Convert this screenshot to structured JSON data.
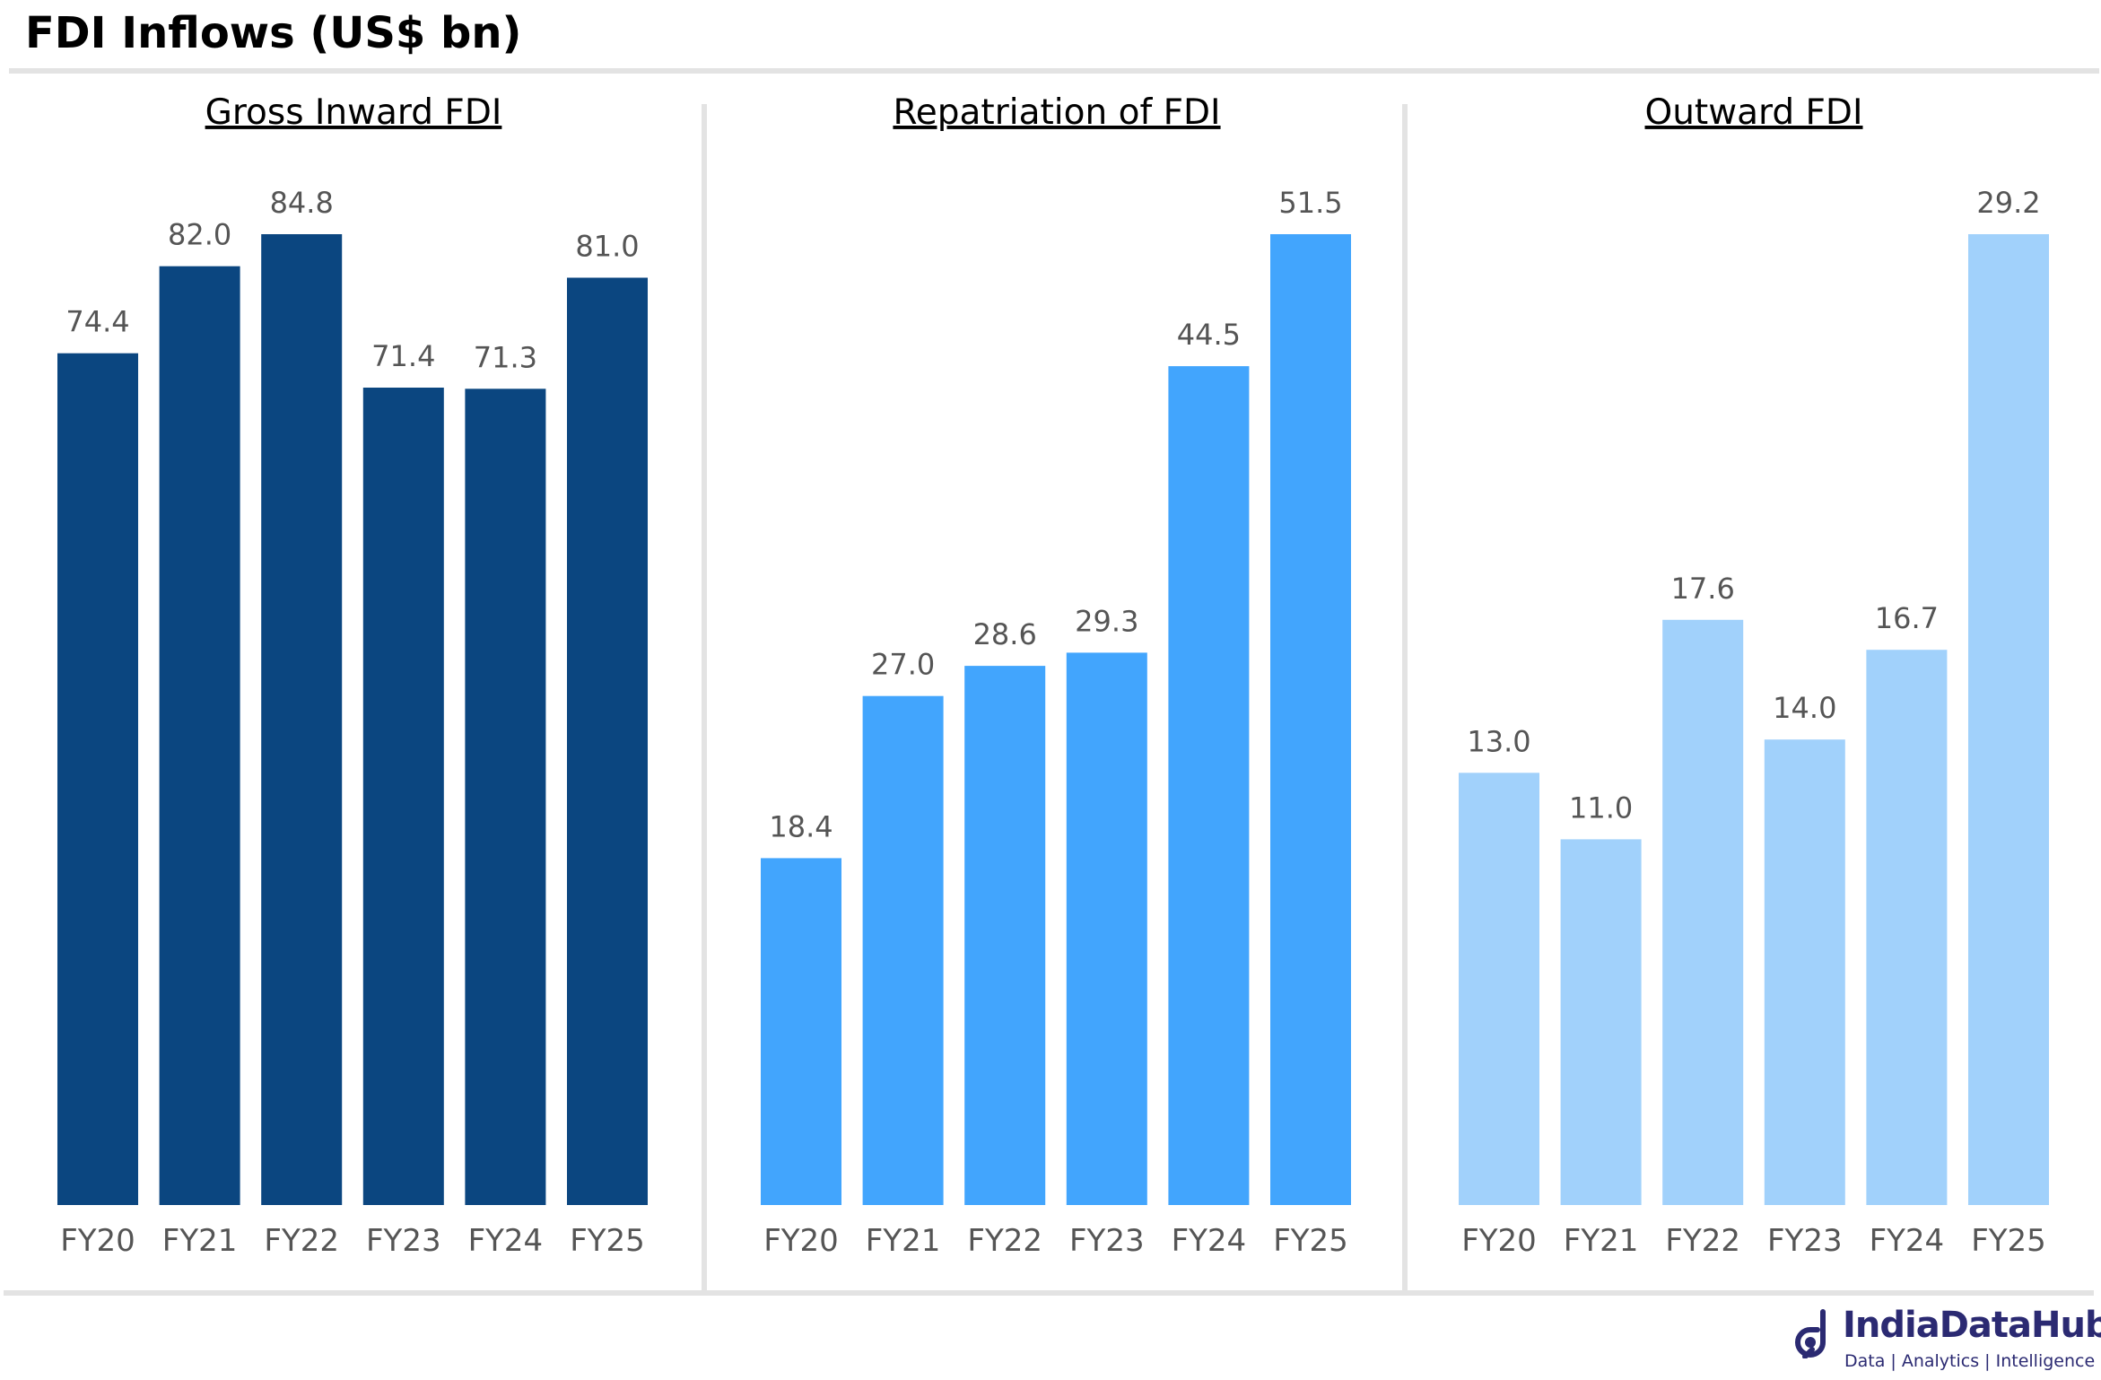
{
  "page": {
    "title": "FDI Inflows (US$ bn)"
  },
  "brand": {
    "name": "IndiaDataHub",
    "tagline": "Data | Analytics | Intelligence",
    "color": "#2b2a72"
  },
  "chart_data": [
    {
      "type": "bar",
      "title": "Gross Inward FDI",
      "categories": [
        "FY20",
        "FY21",
        "FY22",
        "FY23",
        "FY24",
        "FY25"
      ],
      "values": [
        74.4,
        82.0,
        84.8,
        71.4,
        71.3,
        81.0
      ],
      "value_labels": [
        "74.4",
        "82.0",
        "84.8",
        "71.4",
        "71.3",
        "81.0"
      ],
      "color": "#0b4680",
      "xlabel": "",
      "ylabel": "",
      "ylim": [
        0,
        84.8
      ]
    },
    {
      "type": "bar",
      "title": "Repatriation of FDI",
      "categories": [
        "FY20",
        "FY21",
        "FY22",
        "FY23",
        "FY24",
        "FY25"
      ],
      "values": [
        18.4,
        27.0,
        28.6,
        29.3,
        44.5,
        51.5
      ],
      "value_labels": [
        "18.4",
        "27.0",
        "28.6",
        "29.3",
        "44.5",
        "51.5"
      ],
      "color": "#42a5fd",
      "xlabel": "",
      "ylabel": "",
      "ylim": [
        0,
        51.5
      ]
    },
    {
      "type": "bar",
      "title": "Outward FDI",
      "categories": [
        "FY20",
        "FY21",
        "FY22",
        "FY23",
        "FY24",
        "FY25"
      ],
      "values": [
        13.0,
        11.0,
        17.6,
        14.0,
        16.7,
        29.2
      ],
      "value_labels": [
        "13.0",
        "11.0",
        "17.6",
        "14.0",
        "16.7",
        "29.2"
      ],
      "color": "#a1d1fb",
      "xlabel": "",
      "ylabel": "",
      "ylim": [
        0,
        29.2
      ]
    }
  ]
}
